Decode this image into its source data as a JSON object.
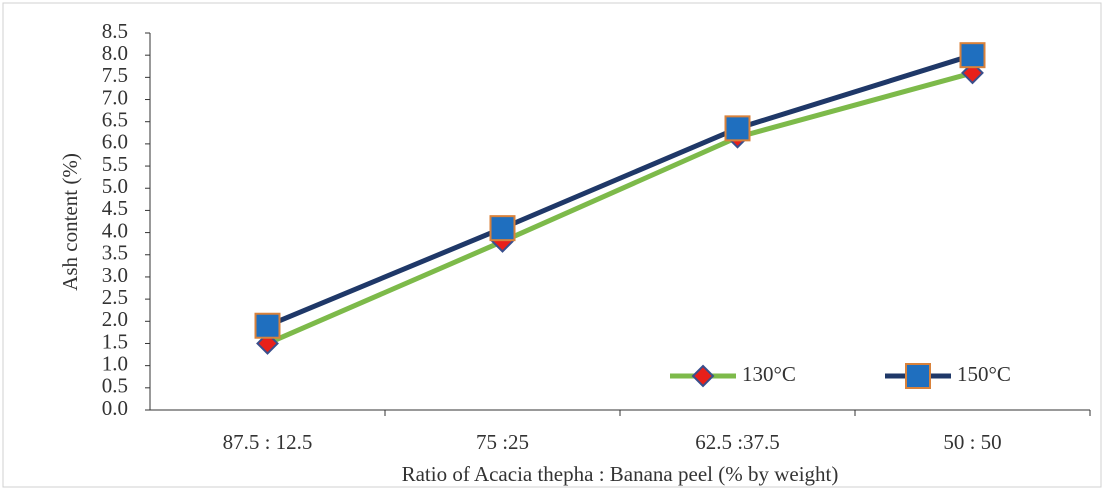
{
  "chart_data": {
    "type": "line",
    "y_label": "Ash content (%)",
    "x_label": "Ratio of Acacia thepha : Banana peel (% by weight)",
    "categories": [
      "87.5 : 12.5",
      "75 :25",
      "62.5 :37.5",
      "50 : 50"
    ],
    "series": [
      {
        "name": "130°C",
        "color": "#7dba4a",
        "marker": "diamond",
        "marker_color": "#e8201a",
        "marker_edge": "#3a4f8c",
        "values": [
          1.5,
          3.8,
          6.15,
          7.6
        ]
      },
      {
        "name": "150°C",
        "color": "#1f3868",
        "marker": "square",
        "marker_color": "#1f6fbf",
        "marker_edge": "#d9823b",
        "values": [
          1.9,
          4.1,
          6.35,
          8.0
        ]
      }
    ],
    "ylim": [
      0,
      8.5
    ],
    "yticks": [
      {
        "value": 0,
        "label": "0.0"
      },
      0.5,
      {
        "value": 1,
        "label": "1.0"
      },
      1.5,
      {
        "value": 2,
        "label": "2.0"
      },
      2.5,
      {
        "value": 3,
        "label": "3.0"
      },
      3.5,
      {
        "value": 4,
        "label": "4.0"
      },
      4.5,
      {
        "value": 5,
        "label": "5.0"
      },
      5.5,
      {
        "value": 6,
        "label": "6.0"
      },
      6.5,
      {
        "value": 7,
        "label": "7.0"
      },
      7.5,
      {
        "value": 8,
        "label": "8.0"
      },
      8.5
    ],
    "grid": false,
    "legend": "lower-right"
  }
}
